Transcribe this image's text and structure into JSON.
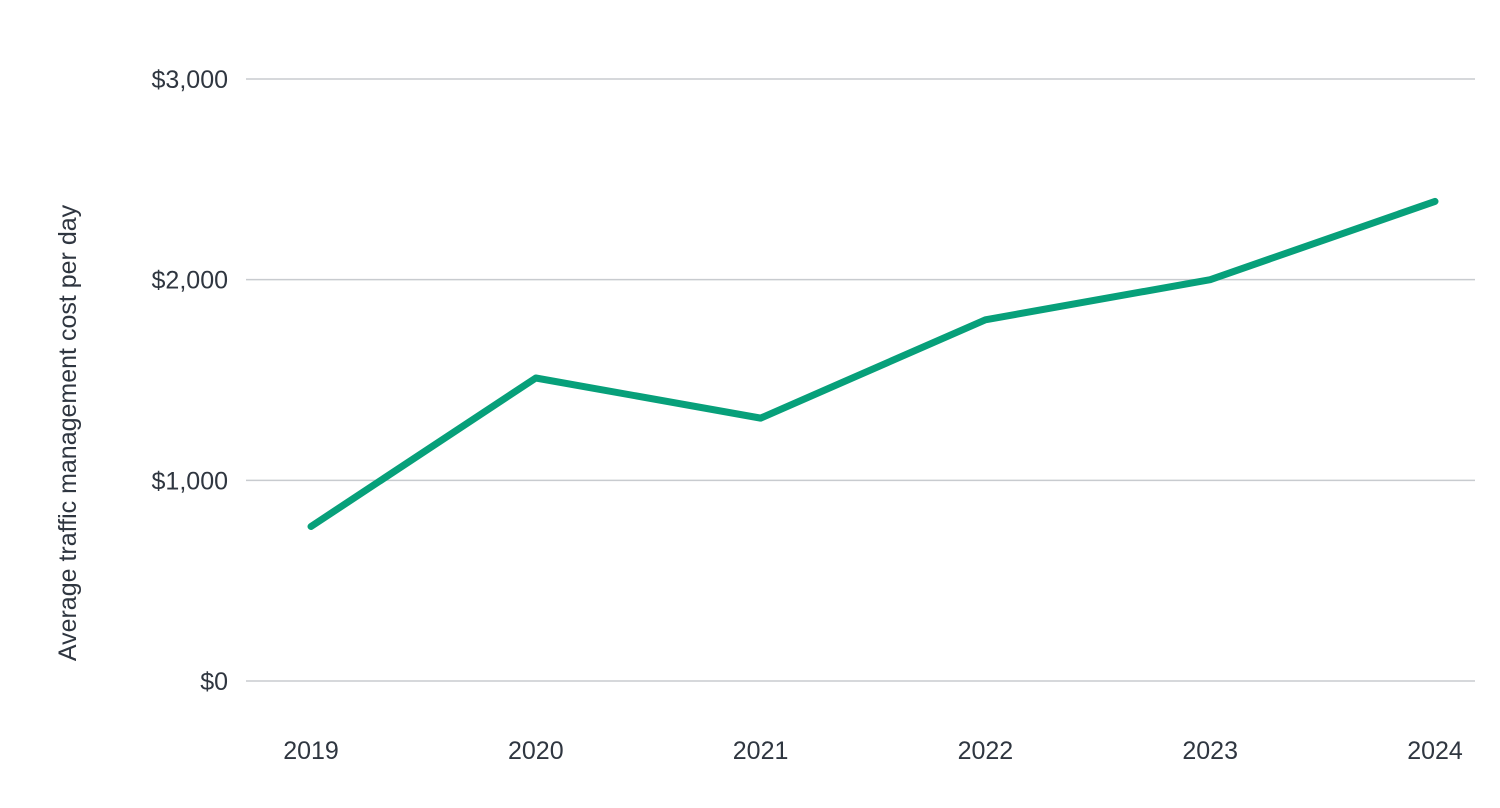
{
  "chart_data": {
    "type": "line",
    "title": "",
    "xlabel": "",
    "ylabel": "Average traffic management cost per day",
    "x": [
      "2019",
      "2020",
      "2021",
      "2022",
      "2023",
      "2024"
    ],
    "series": [
      {
        "values": [
          770,
          1510,
          1310,
          1800,
          2000,
          2390
        ],
        "color": "#07a07a"
      }
    ],
    "ylim": [
      0,
      3000
    ],
    "yticks": [
      0,
      1000,
      2000,
      3000
    ],
    "ytick_labels": [
      "$0",
      "$1,000",
      "$2,000",
      "$3,000"
    ],
    "grid": true,
    "legend": "none"
  }
}
